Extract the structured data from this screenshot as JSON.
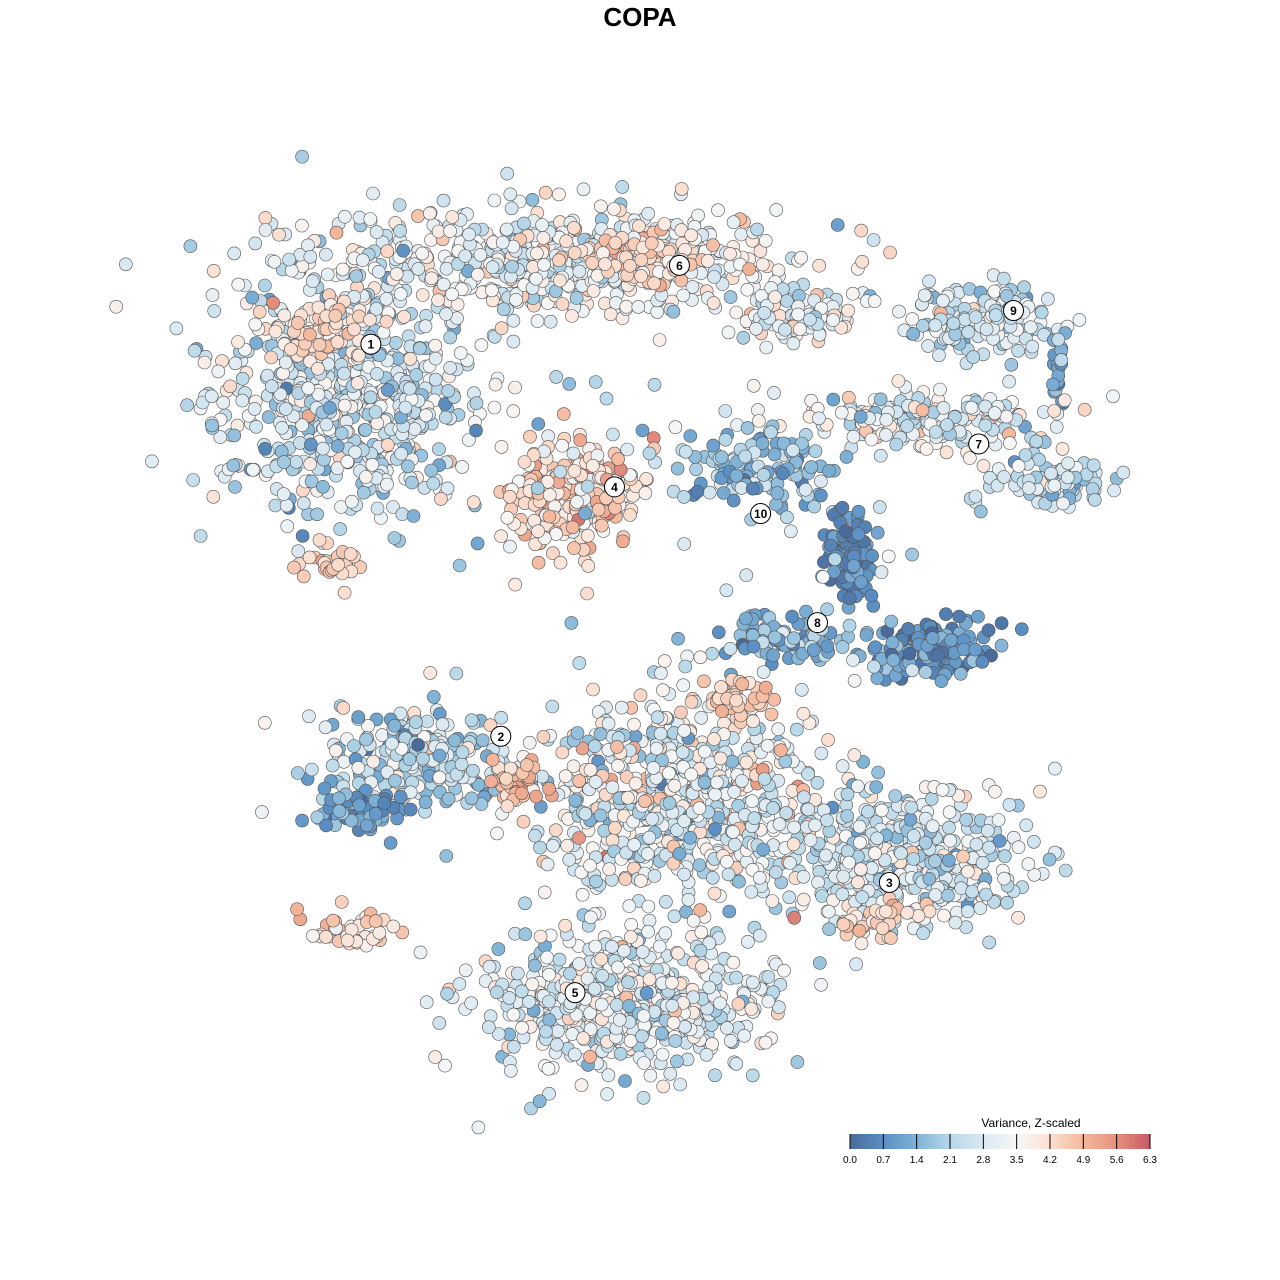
{
  "chart_data": {
    "type": "scatter",
    "title": "COPA",
    "xlabel": "",
    "ylabel": "",
    "grid": false,
    "axes_visible": false,
    "color_scale": {
      "title": "Variance, Z-scaled",
      "ticks": [
        "0.0",
        "0.7",
        "1.4",
        "2.1",
        "2.8",
        "3.5",
        "4.2",
        "4.9",
        "5.6",
        "6.3"
      ],
      "range": [
        0.0,
        6.3
      ],
      "colors": [
        "#4a6a9a",
        "#5b8fc4",
        "#7fb2d6",
        "#b7d7e8",
        "#dbe9f2",
        "#f7f7f7",
        "#fbe0d2",
        "#f4b89c",
        "#e4907e",
        "#c85a66"
      ],
      "placement": "bottom-right"
    },
    "clusters": [
      {
        "label": "1",
        "x": -23.2,
        "y": 25.5
      },
      {
        "label": "2",
        "x": -12.0,
        "y": -8.3
      },
      {
        "label": "3",
        "x": 21.5,
        "y": -20.9
      },
      {
        "label": "4",
        "x": -2.2,
        "y": 13.2
      },
      {
        "label": "5",
        "x": -5.6,
        "y": -30.4
      },
      {
        "label": "6",
        "x": 3.4,
        "y": 32.3
      },
      {
        "label": "7",
        "x": 29.2,
        "y": 16.9
      },
      {
        "label": "8",
        "x": 15.3,
        "y": 1.5
      },
      {
        "label": "9",
        "x": 32.2,
        "y": 28.4
      },
      {
        "label": "10",
        "x": 10.4,
        "y": 10.9
      }
    ]
  }
}
